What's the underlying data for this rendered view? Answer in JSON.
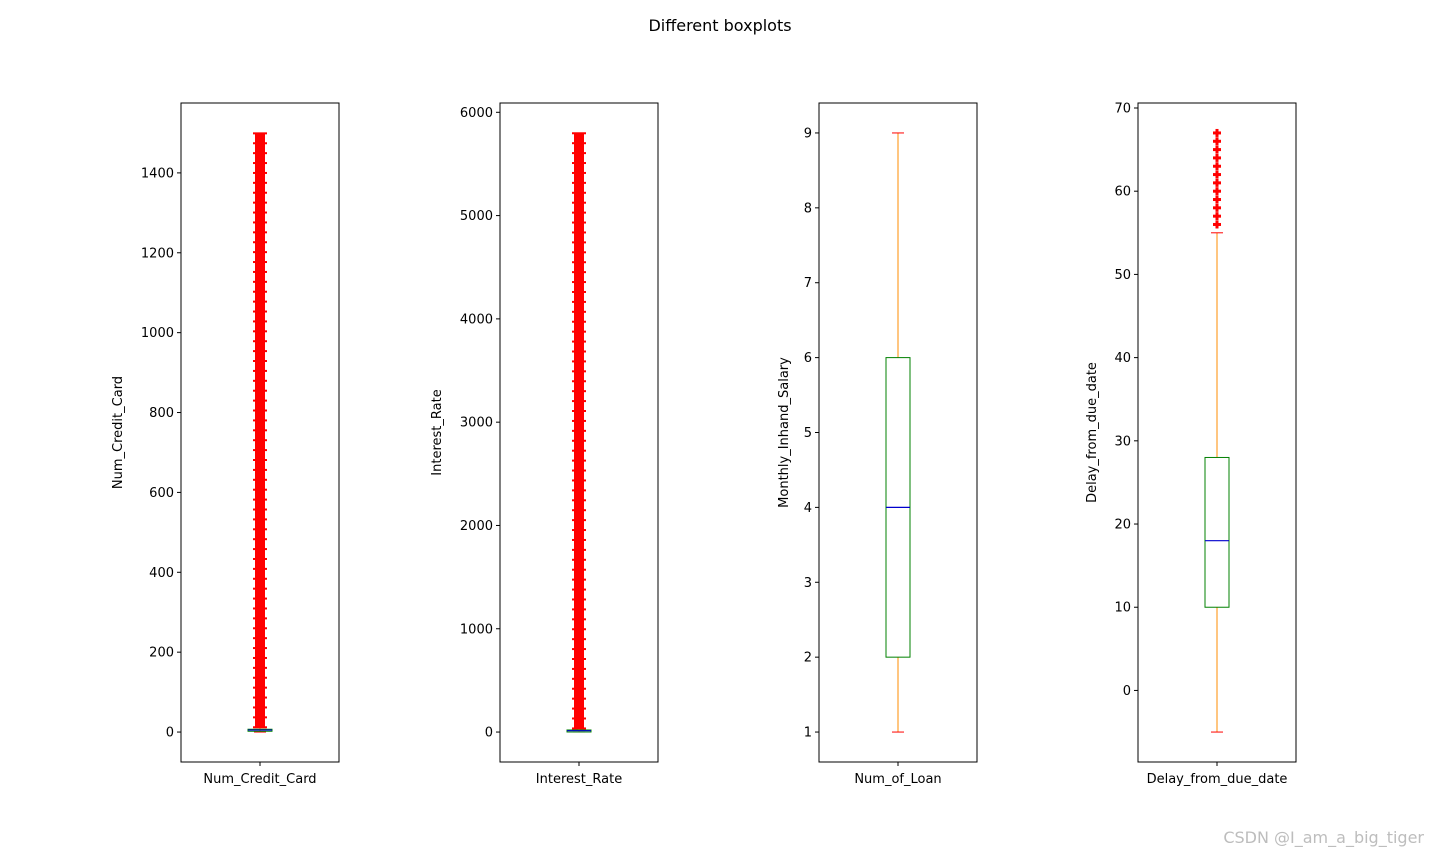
{
  "figure": {
    "title": "Different boxplots",
    "watermark": "CSDN @I_am_a_big_tiger"
  },
  "colors": {
    "box": "#008000",
    "median": "#0000cd",
    "whisker": "#ff8c00",
    "cap": "#ff0000",
    "flier": "#ff0000",
    "axis": "#000000"
  },
  "chart_data": [
    {
      "type": "boxplot",
      "category": "Num_Credit_Card",
      "ylabel": "Num_Credit_Card",
      "ylim": [
        -75,
        1575
      ],
      "yticks": [
        0,
        200,
        400,
        600,
        800,
        1000,
        1200,
        1400
      ],
      "box": {
        "whislo": 0,
        "q1": 4,
        "med": 5,
        "q3": 7,
        "whishi": 11
      },
      "fliers_range": [
        12,
        1499
      ],
      "flier_style": "dense"
    },
    {
      "type": "boxplot",
      "category": "Interest_Rate",
      "ylabel": "Interest_Rate",
      "ylim": [
        -290,
        6090
      ],
      "yticks": [
        0,
        1000,
        2000,
        3000,
        4000,
        5000,
        6000
      ],
      "box": {
        "whislo": 1,
        "q1": 8,
        "med": 13,
        "q3": 20,
        "whishi": 34
      },
      "fliers_range": [
        35,
        5797
      ],
      "flier_style": "dense"
    },
    {
      "type": "boxplot",
      "category": "Num_of_Loan",
      "ylabel": "Monthly_Inhand_Salary",
      "ylim": [
        0.6,
        9.4
      ],
      "yticks": [
        1,
        2,
        3,
        4,
        5,
        6,
        7,
        8,
        9
      ],
      "box": {
        "whislo": 1,
        "q1": 2,
        "med": 4,
        "q3": 6,
        "whishi": 9
      },
      "fliers_range": null,
      "flier_style": "none"
    },
    {
      "type": "boxplot",
      "category": "Delay_from_due_date",
      "ylabel": "Delay_from_due_date",
      "ylim": [
        -8.6,
        70.6
      ],
      "yticks": [
        0,
        10,
        20,
        30,
        40,
        50,
        60,
        70
      ],
      "box": {
        "whislo": -5,
        "q1": 10,
        "med": 18,
        "q3": 28,
        "whishi": 55
      },
      "fliers_range": [
        56,
        67
      ],
      "flier_style": "discrete"
    }
  ]
}
